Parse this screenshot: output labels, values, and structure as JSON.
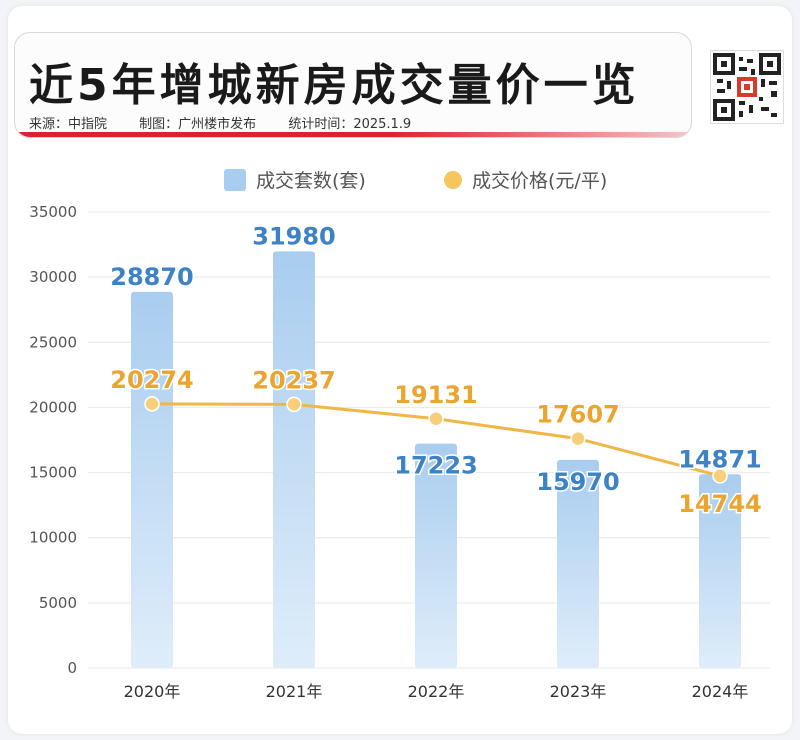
{
  "header": {
    "title": "近5年增城新房成交量价一览",
    "source": "来源：中指院",
    "made_by": "制图：广州楼市发布",
    "stat_time": "统计时间：2025.1.9"
  },
  "qr_icon": "qr-code-icon",
  "colors": {
    "bar": "#a9cdef",
    "bar_light": "#dfedfa",
    "bar_label": "#3d82c4",
    "line": "#f0b646",
    "line_label": "#eba52f",
    "grid": "#e6e9ee",
    "accent_red": "#e0202a"
  },
  "chart_data": {
    "type": "bar+line",
    "categories": [
      "2020年",
      "2021年",
      "2022年",
      "2023年",
      "2024年"
    ],
    "series": [
      {
        "name": "成交套数(套)",
        "type": "bar",
        "values": [
          28870,
          31980,
          17223,
          15970,
          14871
        ]
      },
      {
        "name": "成交价格(元/平)",
        "type": "line",
        "values": [
          20274,
          20237,
          19131,
          17607,
          14744
        ]
      }
    ],
    "y_ticks": [
      "0",
      "5000",
      "10000",
      "15000",
      "20000",
      "25000",
      "30000",
      "35000"
    ],
    "ylim": [
      0,
      35000
    ],
    "grid": true,
    "legend": "top"
  }
}
